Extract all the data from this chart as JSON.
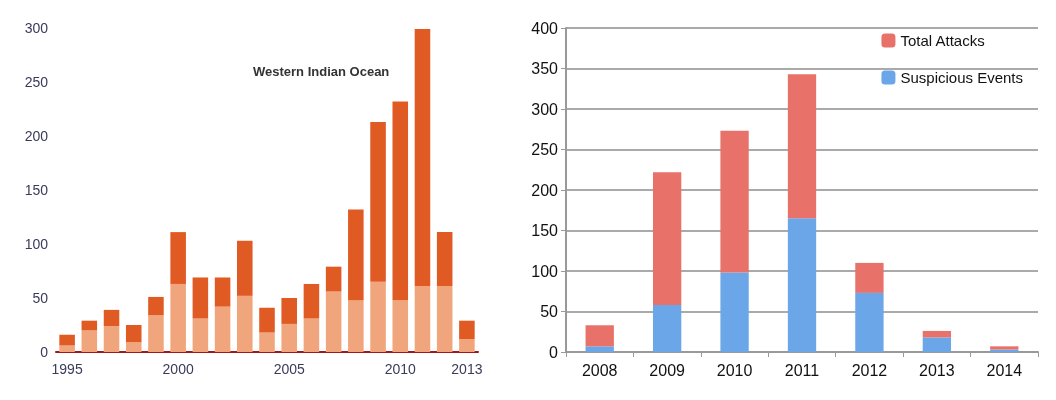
{
  "chart_data": [
    {
      "type": "bar",
      "title": "Western Indian Ocean",
      "stacked": true,
      "categories": [
        "1995",
        null,
        null,
        null,
        null,
        "2000",
        null,
        null,
        null,
        null,
        "2005",
        null,
        null,
        null,
        null,
        "2010",
        null,
        null,
        "2013"
      ],
      "series": [
        {
          "color": "#f0a57c",
          "values": [
            6,
            20,
            24,
            9,
            34,
            63,
            31,
            42,
            52,
            18,
            26,
            31,
            56,
            48,
            65,
            48,
            61,
            61,
            12
          ]
        },
        {
          "color": "#e05a23",
          "values": [
            10,
            9,
            15,
            16,
            17,
            48,
            38,
            27,
            51,
            23,
            24,
            32,
            23,
            84,
            148,
            184,
            238,
            50,
            17
          ]
        }
      ],
      "ylim": [
        0,
        300
      ],
      "yticks": [
        0,
        50,
        100,
        150,
        200,
        250,
        300
      ],
      "grid": false,
      "legend": false
    },
    {
      "type": "bar",
      "stacked": true,
      "categories": [
        "2008",
        "2009",
        "2010",
        "2011",
        "2012",
        "2013",
        "2014"
      ],
      "series": [
        {
          "name": "Suspicious Events",
          "color": "#6aa6e8",
          "values": [
            7,
            58,
            98,
            165,
            73,
            18,
            3
          ]
        },
        {
          "name": "Total Attacks",
          "color": "#e8716a",
          "values": [
            26,
            164,
            175,
            178,
            37,
            8,
            4
          ]
        }
      ],
      "ylim": [
        0,
        400
      ],
      "yticks": [
        0,
        50,
        100,
        150,
        200,
        250,
        300,
        350,
        400
      ],
      "grid": true,
      "legend": "top right"
    }
  ]
}
